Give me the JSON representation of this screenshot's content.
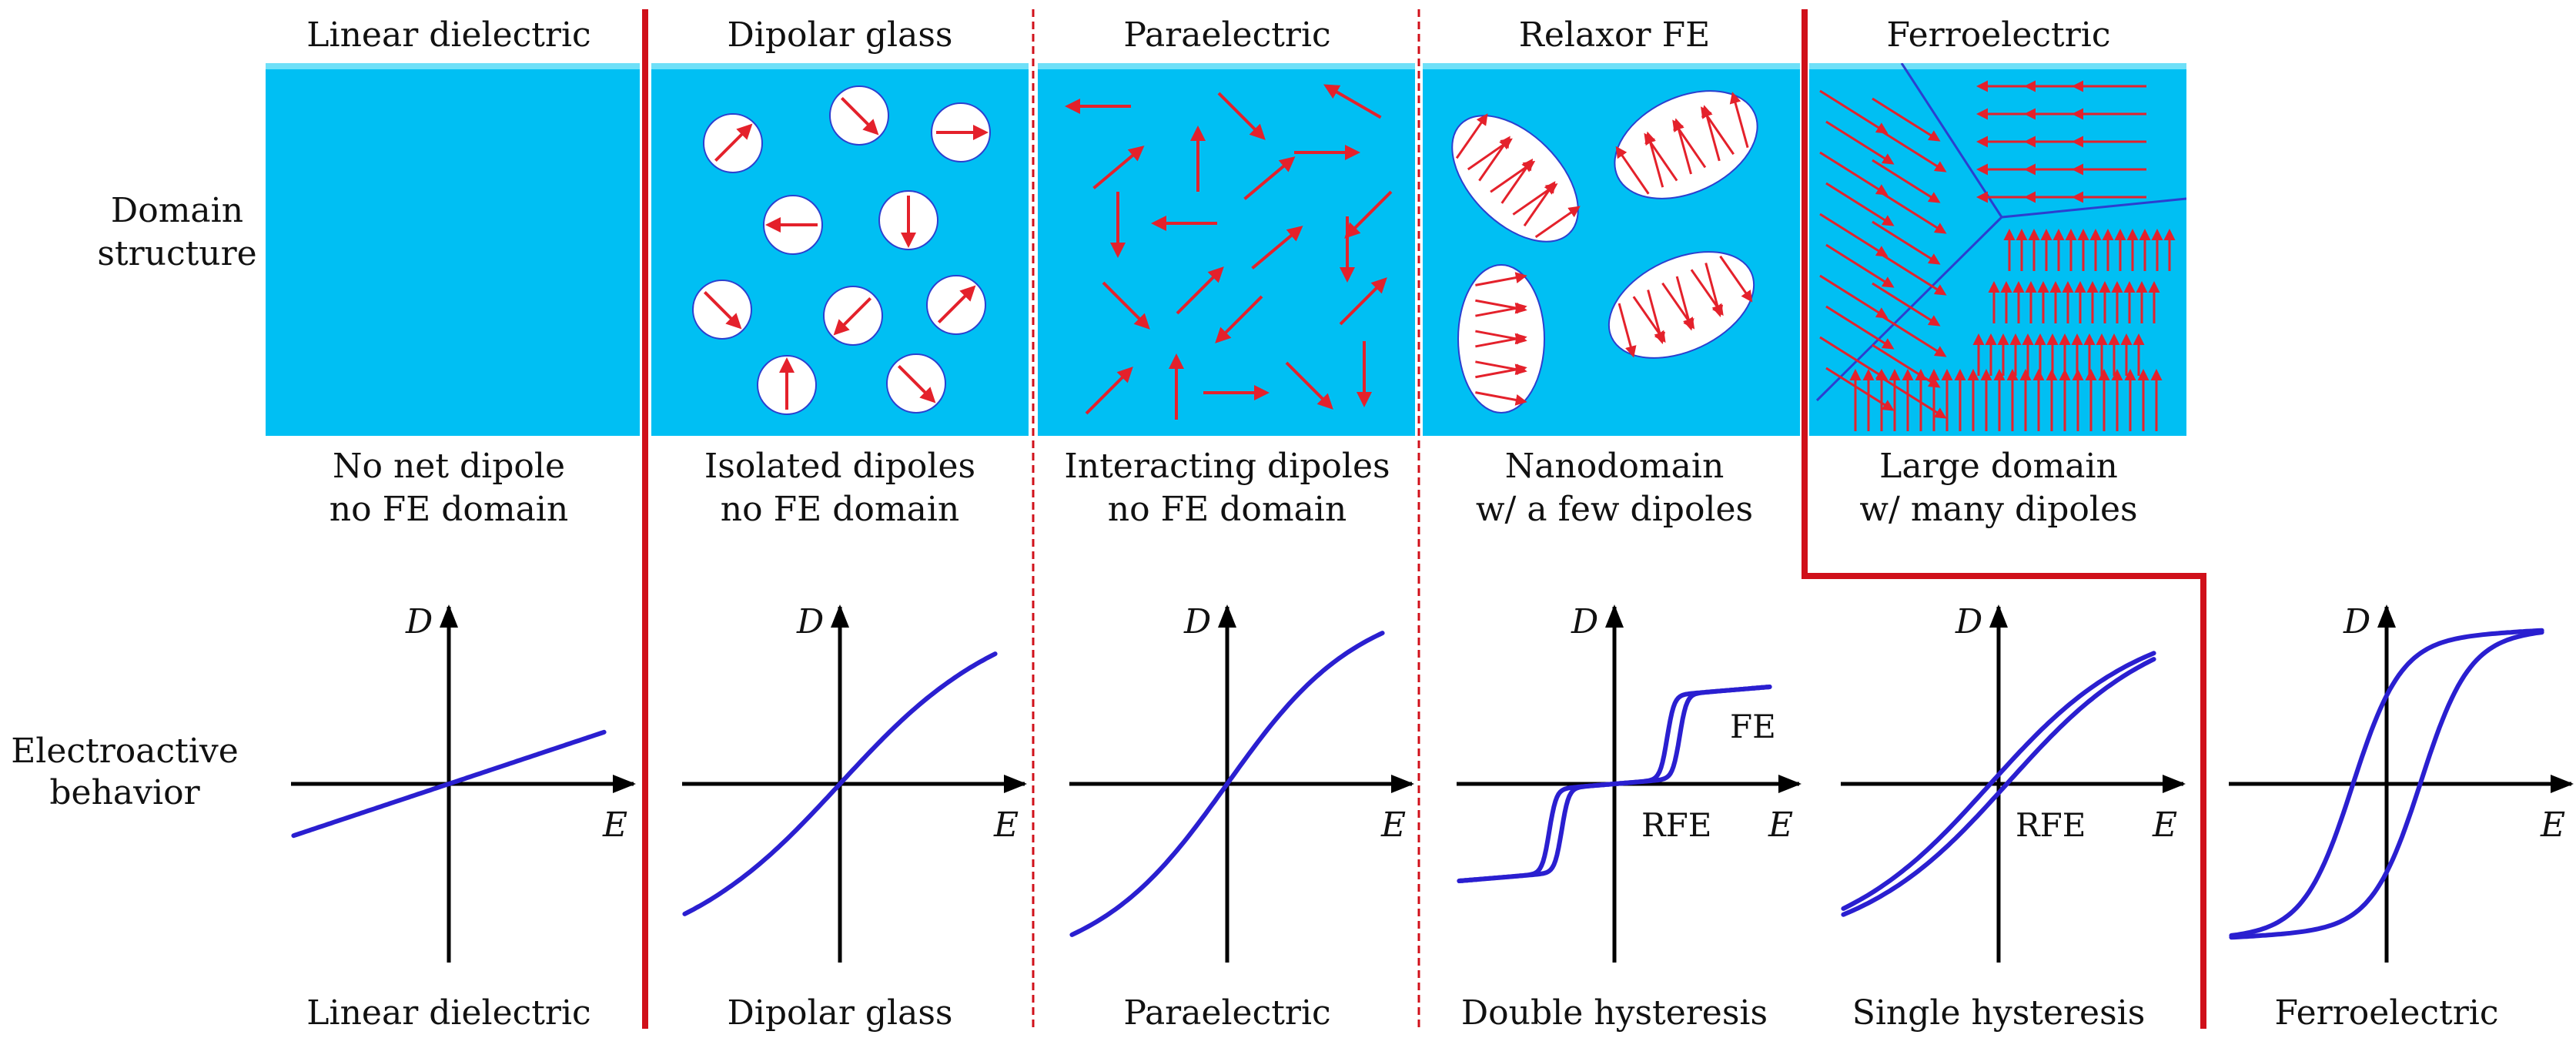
{
  "row_labels": {
    "domain": [
      "Domain",
      "structure"
    ],
    "electro": [
      "Electroactive",
      "behavior"
    ]
  },
  "columns": [
    {
      "title": "Linear dielectric",
      "panel": "empty",
      "desc": [
        "No net dipole",
        "no FE domain"
      ],
      "curve": "linear",
      "caption": "Linear dielectric"
    },
    {
      "title": "Dipolar glass",
      "panel": "isolated",
      "desc": [
        "Isolated dipoles",
        "no FE domain"
      ],
      "curve": "weak_sat",
      "caption": "Dipolar glass"
    },
    {
      "title": "Paraelectric",
      "panel": "interacting",
      "desc": [
        "Interacting dipoles",
        "no FE domain"
      ],
      "curve": "sat",
      "caption": "Paraelectric"
    },
    {
      "title": "Relaxor FE",
      "panel": "nanodomain",
      "desc": [
        "Nanodomain",
        "w/ a few dipoles"
      ],
      "curve": "double",
      "caption": "Double hysteresis",
      "curve_labels": [
        "FE",
        "RFE"
      ]
    },
    {
      "title": "Ferroelectric",
      "panel": "large",
      "desc": [
        "Large domain",
        "w/ many dipoles"
      ],
      "curve": "single",
      "caption": "Single hysteresis",
      "curve_labels": [
        "RFE"
      ]
    },
    {
      "title": "",
      "panel": "none",
      "desc": [],
      "curve": "ferro",
      "caption": "Ferroelectric"
    }
  ],
  "axis_labels": {
    "x": "E",
    "y": "D"
  },
  "colors": {
    "panel": "#00BFF3",
    "panel_top": "#6FE0F8",
    "dipole": "#E4212B",
    "curve": "#2A1FD0",
    "divider": "#D0101A",
    "domain_wall": "#2B3FCF",
    "axis": "#000000"
  }
}
